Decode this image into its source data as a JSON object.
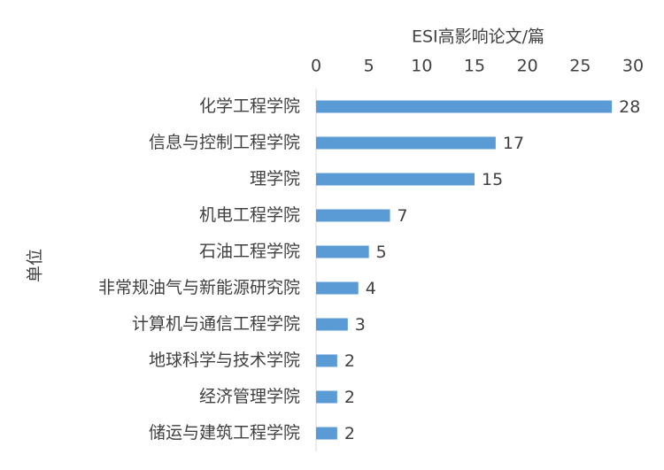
{
  "chart_data": {
    "type": "bar",
    "orientation": "horizontal",
    "x_label": "ESI高影响论文/篇",
    "y_label": "单位",
    "categories": [
      "化学工程学院",
      "信息与控制工程学院",
      "理学院",
      "机电工程学院",
      "石油工程学院",
      "非常规油气与新能源研究院",
      "计算机与通信工程学院",
      "地球科学与技术学院",
      "经济管理学院",
      "储运与建筑工程学院"
    ],
    "values": [
      28,
      17,
      15,
      7,
      5,
      4,
      3,
      2,
      2,
      2
    ],
    "color": "#5b9bd5",
    "xlim": [
      0,
      30
    ],
    "xticks": [
      0,
      5,
      10,
      15,
      20,
      25,
      30
    ],
    "grid": false
  }
}
